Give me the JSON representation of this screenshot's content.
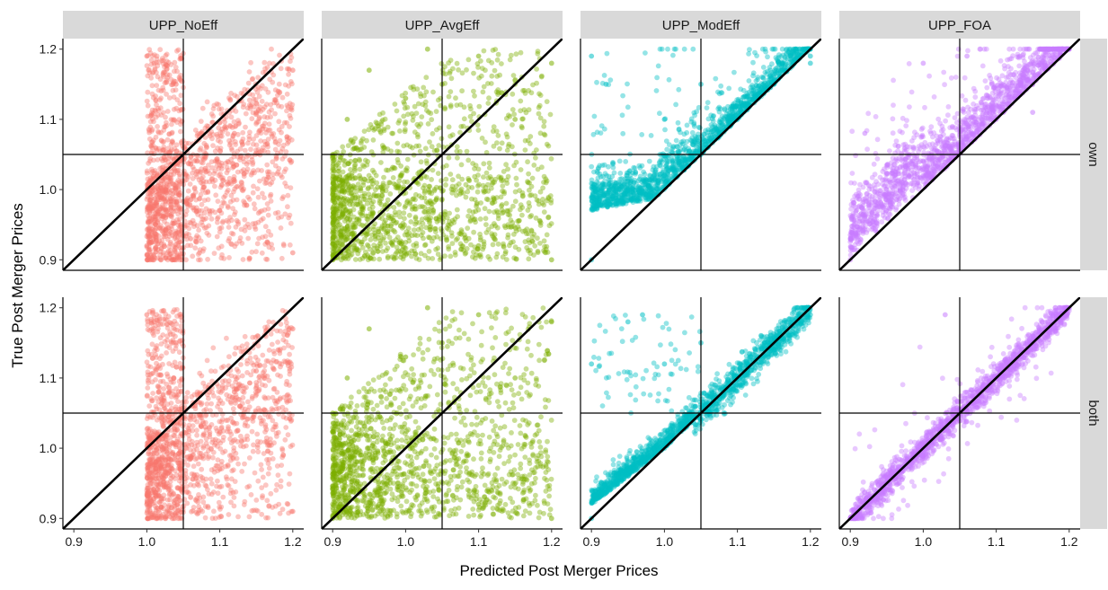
{
  "chart_data": {
    "type": "scatter",
    "xlabel": "Predicted Post Merger Prices",
    "ylabel": "True Post Merger Prices",
    "xlim": [
      0.885,
      1.215
    ],
    "ylim": [
      0.885,
      1.215
    ],
    "x_ticks": [
      0.9,
      1.0,
      1.1,
      1.2
    ],
    "y_ticks": [
      0.9,
      1.0,
      1.1,
      1.2
    ],
    "x_tick_labels": [
      "0.9",
      "1.0",
      "1.1",
      "1.2"
    ],
    "y_tick_labels": [
      "0.9",
      "1.0",
      "1.1",
      "1.2"
    ],
    "reference_lines": {
      "vertical": 1.05,
      "horizontal": 1.05,
      "diagonal": "y = x"
    },
    "grid": false,
    "facet_columns": [
      "UPP_NoEff",
      "UPP_AvgEff",
      "UPP_ModEff",
      "UPP_FOA"
    ],
    "facet_rows": [
      "own",
      "both"
    ],
    "colors": {
      "UPP_NoEff": "#F8766D",
      "UPP_AvgEff": "#7CAE00",
      "UPP_ModEff": "#00BFC4",
      "UPP_FOA": "#C77CFF",
      "strip_background": "#D9D9D9"
    },
    "panels": [
      {
        "column": "UPP_NoEff",
        "row": "own",
        "points": [
          [
            1.0,
            0.92
          ],
          [
            1.0,
            1.19
          ],
          [
            1.01,
            1.18
          ],
          [
            1.02,
            1.07
          ],
          [
            1.04,
            1.15
          ],
          [
            1.06,
            0.93
          ],
          [
            1.08,
            1.03
          ],
          [
            1.1,
            0.97
          ],
          [
            1.12,
            1.08
          ],
          [
            1.15,
            1.11
          ],
          [
            1.18,
            1.14
          ],
          [
            1.2,
            1.17
          ],
          [
            1.2,
            0.91
          ]
        ]
      },
      {
        "column": "UPP_AvgEff",
        "row": "own",
        "points": [
          [
            0.9,
            0.9
          ],
          [
            0.9,
            1.05
          ],
          [
            0.92,
            1.1
          ],
          [
            0.95,
            1.17
          ],
          [
            1.0,
            1.13
          ],
          [
            1.03,
            1.2
          ],
          [
            1.05,
            1.15
          ],
          [
            1.1,
            1.19
          ],
          [
            1.15,
            1.1
          ],
          [
            1.2,
            1.18
          ],
          [
            1.2,
            0.9
          ],
          [
            1.1,
            0.92
          ]
        ]
      },
      {
        "column": "UPP_ModEff",
        "row": "own",
        "points": [
          [
            0.9,
            0.9
          ],
          [
            0.9,
            1.19
          ],
          [
            0.92,
            1.15
          ],
          [
            0.95,
            1.0
          ],
          [
            1.0,
            1.02
          ],
          [
            1.05,
            1.05
          ],
          [
            1.1,
            1.1
          ],
          [
            1.15,
            1.15
          ],
          [
            1.2,
            1.19
          ],
          [
            1.2,
            1.18
          ],
          [
            1.05,
            1.15
          ],
          [
            1.0,
            1.1
          ]
        ]
      },
      {
        "column": "UPP_FOA",
        "row": "own",
        "points": [
          [
            0.9,
            0.9
          ],
          [
            0.92,
            1.08
          ],
          [
            0.95,
            1.0
          ],
          [
            1.0,
            1.02
          ],
          [
            1.05,
            1.06
          ],
          [
            1.1,
            1.1
          ],
          [
            1.15,
            1.15
          ],
          [
            1.2,
            1.2
          ],
          [
            1.0,
            1.18
          ],
          [
            1.06,
            1.19
          ],
          [
            1.15,
            1.11
          ]
        ]
      },
      {
        "column": "UPP_NoEff",
        "row": "both",
        "points": [
          [
            1.0,
            0.92
          ],
          [
            1.0,
            1.19
          ],
          [
            1.01,
            1.18
          ],
          [
            1.02,
            1.07
          ],
          [
            1.04,
            1.15
          ],
          [
            1.06,
            0.93
          ],
          [
            1.08,
            1.03
          ],
          [
            1.1,
            0.97
          ],
          [
            1.12,
            1.08
          ],
          [
            1.15,
            1.11
          ],
          [
            1.18,
            1.14
          ],
          [
            1.2,
            1.17
          ],
          [
            1.2,
            0.91
          ]
        ]
      },
      {
        "column": "UPP_AvgEff",
        "row": "both",
        "points": [
          [
            0.9,
            0.9
          ],
          [
            0.9,
            1.05
          ],
          [
            0.92,
            1.1
          ],
          [
            0.95,
            1.17
          ],
          [
            1.0,
            1.13
          ],
          [
            1.03,
            1.2
          ],
          [
            1.05,
            1.15
          ],
          [
            1.1,
            1.19
          ],
          [
            1.15,
            1.1
          ],
          [
            1.2,
            1.18
          ],
          [
            1.2,
            0.9
          ],
          [
            1.1,
            0.92
          ]
        ]
      },
      {
        "column": "UPP_ModEff",
        "row": "both",
        "points": [
          [
            0.9,
            0.9
          ],
          [
            0.9,
            1.12
          ],
          [
            0.95,
            1.18
          ],
          [
            0.97,
            1.19
          ],
          [
            1.0,
            1.0
          ],
          [
            1.05,
            1.04
          ],
          [
            1.1,
            1.09
          ],
          [
            1.15,
            1.14
          ],
          [
            1.2,
            1.19
          ],
          [
            1.05,
            1.15
          ],
          [
            1.0,
            1.12
          ]
        ]
      },
      {
        "column": "UPP_FOA",
        "row": "both",
        "points": [
          [
            0.9,
            0.9
          ],
          [
            0.95,
            0.95
          ],
          [
            1.0,
            1.0
          ],
          [
            1.05,
            1.05
          ],
          [
            1.1,
            1.1
          ],
          [
            1.15,
            1.15
          ],
          [
            1.2,
            1.2
          ],
          [
            1.03,
            1.19
          ],
          [
            1.15,
            1.16
          ]
        ]
      }
    ]
  }
}
